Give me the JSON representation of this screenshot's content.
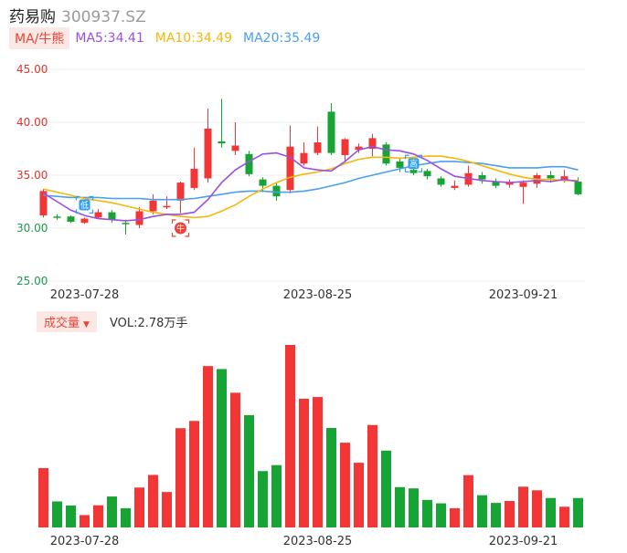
{
  "header": {
    "name": "药易购",
    "code": "300937.SZ"
  },
  "indicators": {
    "ma_button": "MA/牛熊",
    "ma5": "MA5:34.41",
    "ma10": "MA10:34.49",
    "ma20": "MA20:35.49"
  },
  "volume_bar": {
    "button": "成交量",
    "caret": "▼",
    "label": "VOL:2.78万手"
  },
  "colors": {
    "up": "#f23535",
    "down": "#16a534",
    "ma5": "#9b4fe0",
    "ma10": "#f5b70a",
    "ma20": "#4a9ff0",
    "badge": "#2e9ff0",
    "badge_red": "#e8443a"
  },
  "chart_data": [
    {
      "type": "candlestick",
      "yticks": [
        "45.00",
        "40.00",
        "35.00",
        "30.00",
        "25.00"
      ],
      "ylim": [
        25,
        45
      ],
      "xticks": [
        {
          "label": "2023-07-28",
          "index": 3
        },
        {
          "label": "2023-08-25",
          "index": 20
        },
        {
          "label": "2023-09-21",
          "index": 35
        }
      ],
      "candles": [
        {
          "o": 31.2,
          "c": 33.5,
          "h": 33.7,
          "l": 31.0
        },
        {
          "o": 31.1,
          "c": 31.0,
          "h": 31.3,
          "l": 30.8
        },
        {
          "o": 31.1,
          "c": 30.6,
          "h": 31.2,
          "l": 30.5
        },
        {
          "o": 30.5,
          "c": 30.9,
          "h": 31.0,
          "l": 30.4
        },
        {
          "o": 31.0,
          "c": 31.5,
          "h": 31.8,
          "l": 30.9
        },
        {
          "o": 31.5,
          "c": 30.8,
          "h": 31.7,
          "l": 30.5
        },
        {
          "o": 30.5,
          "c": 30.4,
          "h": 30.8,
          "l": 29.4
        },
        {
          "o": 30.3,
          "c": 31.6,
          "h": 32.0,
          "l": 30.0
        },
        {
          "o": 31.6,
          "c": 32.6,
          "h": 33.2,
          "l": 31.3
        },
        {
          "o": 32.1,
          "c": 32.1,
          "h": 33.0,
          "l": 31.8
        },
        {
          "o": 32.6,
          "c": 34.3,
          "h": 34.4,
          "l": 31.4
        },
        {
          "o": 33.8,
          "c": 35.6,
          "h": 37.6,
          "l": 33.6
        },
        {
          "o": 34.7,
          "c": 39.4,
          "h": 41.3,
          "l": 34.3
        },
        {
          "o": 38.2,
          "c": 38.0,
          "h": 42.2,
          "l": 37.6
        },
        {
          "o": 37.3,
          "c": 37.8,
          "h": 40.0,
          "l": 36.9
        },
        {
          "o": 37.0,
          "c": 35.1,
          "h": 37.3,
          "l": 34.9
        },
        {
          "o": 34.6,
          "c": 34.0,
          "h": 34.8,
          "l": 33.4
        },
        {
          "o": 34.0,
          "c": 33.0,
          "h": 34.3,
          "l": 32.6
        },
        {
          "o": 33.6,
          "c": 37.7,
          "h": 39.7,
          "l": 33.3
        },
        {
          "o": 36.1,
          "c": 37.1,
          "h": 38.1,
          "l": 35.9
        },
        {
          "o": 37.1,
          "c": 38.1,
          "h": 39.6,
          "l": 36.9
        },
        {
          "o": 41.0,
          "c": 37.1,
          "h": 41.8,
          "l": 36.9
        },
        {
          "o": 36.9,
          "c": 38.4,
          "h": 38.5,
          "l": 36.2
        },
        {
          "o": 37.4,
          "c": 37.7,
          "h": 38.0,
          "l": 37.1
        },
        {
          "o": 37.5,
          "c": 38.5,
          "h": 38.9,
          "l": 36.8
        },
        {
          "o": 37.9,
          "c": 36.1,
          "h": 38.1,
          "l": 35.9
        },
        {
          "o": 36.3,
          "c": 35.7,
          "h": 36.6,
          "l": 35.3
        },
        {
          "o": 35.5,
          "c": 35.2,
          "h": 35.8,
          "l": 35.0
        },
        {
          "o": 35.4,
          "c": 34.9,
          "h": 35.6,
          "l": 34.6
        },
        {
          "o": 34.7,
          "c": 34.1,
          "h": 34.9,
          "l": 33.9
        },
        {
          "o": 33.8,
          "c": 34.0,
          "h": 34.5,
          "l": 33.6
        },
        {
          "o": 34.1,
          "c": 35.2,
          "h": 35.9,
          "l": 33.9
        },
        {
          "o": 35.0,
          "c": 34.6,
          "h": 35.3,
          "l": 34.2
        },
        {
          "o": 34.4,
          "c": 34.0,
          "h": 34.7,
          "l": 33.8
        },
        {
          "o": 34.1,
          "c": 34.3,
          "h": 34.6,
          "l": 33.8
        },
        {
          "o": 33.9,
          "c": 34.3,
          "h": 34.5,
          "l": 32.3
        },
        {
          "o": 34.2,
          "c": 35.0,
          "h": 35.2,
          "l": 33.8
        },
        {
          "o": 35.0,
          "c": 34.7,
          "h": 35.4,
          "l": 34.3
        },
        {
          "o": 34.6,
          "c": 34.9,
          "h": 35.5,
          "l": 34.3
        },
        {
          "o": 34.4,
          "c": 33.2,
          "h": 34.8,
          "l": 33.1
        }
      ],
      "ma5": [
        33.3,
        32.5,
        31.7,
        31.2,
        30.9,
        30.8,
        30.7,
        30.8,
        31.1,
        31.3,
        31.3,
        31.5,
        32.7,
        34.3,
        35.5,
        36.3,
        37.0,
        37.1,
        36.7,
        35.7,
        35.5,
        35.4,
        36.3,
        37.4,
        37.7,
        37.4,
        37.3,
        37.0,
        36.4,
        35.6,
        34.9,
        34.7,
        34.5,
        34.4,
        34.3,
        34.4,
        34.5,
        34.4,
        34.6,
        34.4
      ],
      "ma10": [
        33.7,
        33.4,
        33.1,
        32.8,
        32.6,
        32.4,
        32.1,
        31.8,
        31.5,
        31.3,
        31.1,
        31.0,
        31.1,
        31.6,
        32.2,
        33.0,
        33.7,
        34.3,
        34.8,
        35.1,
        35.3,
        35.6,
        36.1,
        36.5,
        36.7,
        36.7,
        36.6,
        36.7,
        36.8,
        36.8,
        36.6,
        36.3,
        35.9,
        35.5,
        35.1,
        34.8,
        34.6,
        34.6,
        34.5,
        34.5
      ],
      "ma20": [
        33.1,
        33.0,
        32.9,
        32.9,
        32.9,
        32.8,
        32.8,
        32.8,
        32.7,
        32.7,
        32.7,
        32.8,
        33.0,
        33.2,
        33.4,
        33.5,
        33.5,
        33.4,
        33.4,
        33.5,
        33.7,
        34.0,
        34.3,
        34.7,
        35.0,
        35.3,
        35.6,
        35.9,
        36.1,
        36.3,
        36.3,
        36.2,
        36.1,
        35.9,
        35.7,
        35.7,
        35.7,
        35.8,
        35.8,
        35.5
      ]
    },
    {
      "type": "bar",
      "series": [
        {
          "values": [
            2.78,
            1.22,
            1.03,
            0.58,
            1.04,
            1.45,
            0.9,
            1.87,
            2.46,
            1.66,
            4.65,
            4.99,
            7.56,
            7.42,
            6.31,
            5.26,
            2.64,
            2.92,
            8.55,
            6.03,
            6.11,
            4.66,
            3.97,
            3.03,
            4.8,
            3.6,
            1.89,
            1.83,
            1.29,
            1.13,
            0.9,
            2.45,
            1.51,
            1.15,
            1.24,
            1.91,
            1.74,
            1.38,
            0.97,
            1.38
          ]
        }
      ],
      "xticks": [
        {
          "label": "2023-07-28",
          "index": 3
        },
        {
          "label": "2023-08-25",
          "index": 20
        },
        {
          "label": "2023-09-21",
          "index": 35
        }
      ]
    }
  ],
  "markers": [
    {
      "index": 3,
      "price": 32.2,
      "glyph": "低",
      "kind": "low"
    },
    {
      "index": 10,
      "price": 30.0,
      "glyph": "牛",
      "kind": "bull"
    },
    {
      "index": 27,
      "price": 36.1,
      "glyph": "高",
      "kind": "high"
    }
  ]
}
